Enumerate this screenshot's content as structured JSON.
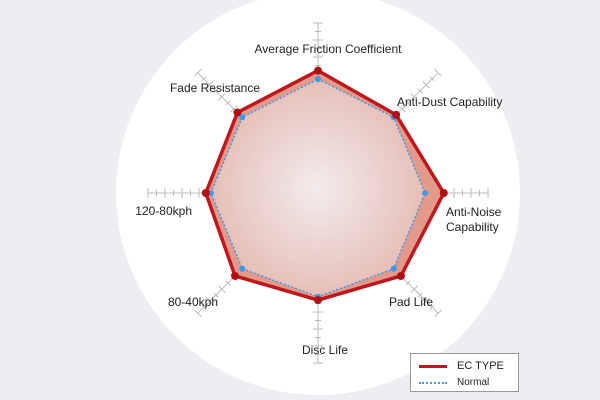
{
  "chart_data": {
    "type": "radar",
    "axes": [
      "Average Friction Coefficient",
      "Anti-Dust Capability",
      "Anti-Noise Capability",
      "Pad Life",
      "Disc Life",
      "80-40kph",
      "120-80kph",
      "Fade Resistance"
    ],
    "range": [
      0,
      100
    ],
    "grid": true,
    "legend_position": "bottom-right",
    "series": [
      {
        "name": "EC TYPE",
        "values": [
          72,
          65,
          74,
          69,
          63,
          69,
          66,
          67
        ],
        "color": "#c0171c"
      },
      {
        "name": "Normal",
        "values": [
          67,
          63,
          63,
          63,
          61,
          63,
          63,
          63
        ],
        "color": "#3a9be8"
      }
    ]
  }
}
